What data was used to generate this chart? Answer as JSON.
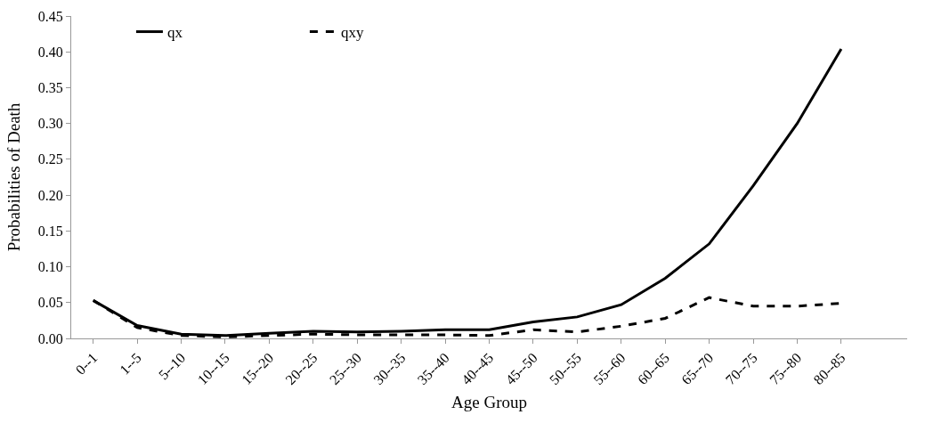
{
  "chart_data": {
    "type": "line",
    "xlabel": "Age Group",
    "ylabel": "Probabilities of Death",
    "categories": [
      "0--1",
      "1--5",
      "5--10",
      "10--15",
      "15--20",
      "20--25",
      "25--30",
      "30--35",
      "35--40",
      "40--45",
      "45--50",
      "50--55",
      "55--60",
      "60--65",
      "65--70",
      "70--75",
      "75--80",
      "80--85",
      null
    ],
    "series": [
      {
        "name": "qx",
        "color": "#000000",
        "line_style": "solid",
        "values": [
          0.053,
          0.018,
          0.006,
          0.004,
          0.007,
          0.01,
          0.009,
          0.01,
          0.012,
          0.012,
          0.023,
          0.03,
          0.047,
          0.084,
          0.132,
          0.213,
          0.3,
          0.404,
          null
        ]
      },
      {
        "name": "qxy",
        "color": "#000000",
        "line_style": "dashed",
        "values": [
          0.053,
          0.015,
          0.004,
          0.002,
          0.004,
          0.006,
          0.005,
          0.005,
          0.005,
          0.004,
          0.012,
          0.009,
          0.017,
          0.028,
          0.057,
          0.045,
          0.045,
          0.049,
          null
        ]
      }
    ],
    "ylim": [
      0,
      0.45
    ],
    "yticks": [
      {
        "value": 0,
        "label": "0.00"
      },
      {
        "value": 0.05,
        "label": "0.05"
      },
      {
        "value": 0.1,
        "label": "0.10"
      },
      {
        "value": 0.15,
        "label": "0.15"
      },
      {
        "value": 0.2,
        "label": "0.20"
      },
      {
        "value": 0.25,
        "label": "0.25"
      },
      {
        "value": 0.3,
        "label": "0.30"
      },
      {
        "value": 0.35,
        "label": "0.35"
      },
      {
        "value": 0.4,
        "label": "0.40"
      },
      {
        "value": 0.45,
        "label": "0.45"
      }
    ],
    "legend": "top",
    "marker": "none"
  }
}
